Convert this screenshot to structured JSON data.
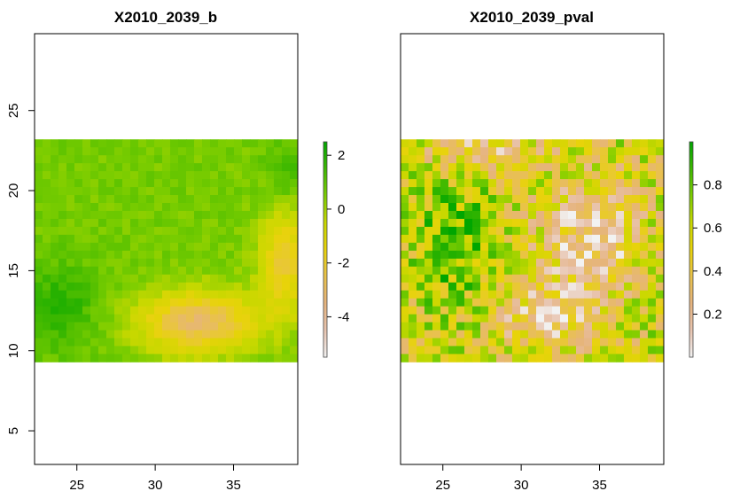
{
  "chart_data": [
    {
      "type": "heatmap",
      "title": "X2010_2039_b",
      "xlim": [
        22.3,
        39.1
      ],
      "ylim": [
        2.9,
        29.8
      ],
      "raster_extent": {
        "x": [
          22.3,
          39.1
        ],
        "y": [
          9.3,
          23.2
        ]
      },
      "grid": {
        "cols": 33,
        "rows": 28
      },
      "x_ticks": [
        "25",
        "30",
        "35"
      ],
      "y_ticks": [
        "5",
        "10",
        "15",
        "20",
        "25"
      ],
      "legend": {
        "range": [
          -5.5,
          2.5
        ],
        "ticks": [
          "2",
          "0",
          "-2",
          "-4"
        ],
        "tick_values": [
          2,
          0,
          -2,
          -4
        ]
      },
      "palette": [
        "#f2f2f2",
        "#e8c4b0",
        "#e6b47e",
        "#e9c24a",
        "#e8d30a",
        "#c8d800",
        "#7ccd00",
        "#3db800",
        "#00a600"
      ]
    },
    {
      "type": "heatmap",
      "title": "X2010_2039_pval",
      "xlim": [
        22.3,
        39.1
      ],
      "ylim": [
        2.9,
        29.8
      ],
      "raster_extent": {
        "x": [
          22.3,
          39.1
        ],
        "y": [
          9.3,
          23.2
        ]
      },
      "grid": {
        "cols": 33,
        "rows": 28
      },
      "x_ticks": [
        "25",
        "30",
        "35"
      ],
      "y_ticks": [],
      "legend": {
        "range": [
          0.0,
          1.0
        ],
        "ticks": [
          "0.8",
          "0.6",
          "0.4",
          "0.2"
        ],
        "tick_values": [
          0.8,
          0.6,
          0.4,
          0.2
        ]
      },
      "palette": [
        "#f2f2f2",
        "#e8c4b0",
        "#e6b47e",
        "#e9c24a",
        "#e8d30a",
        "#c8d800",
        "#7ccd00",
        "#3db800",
        "#00a600"
      ]
    }
  ]
}
